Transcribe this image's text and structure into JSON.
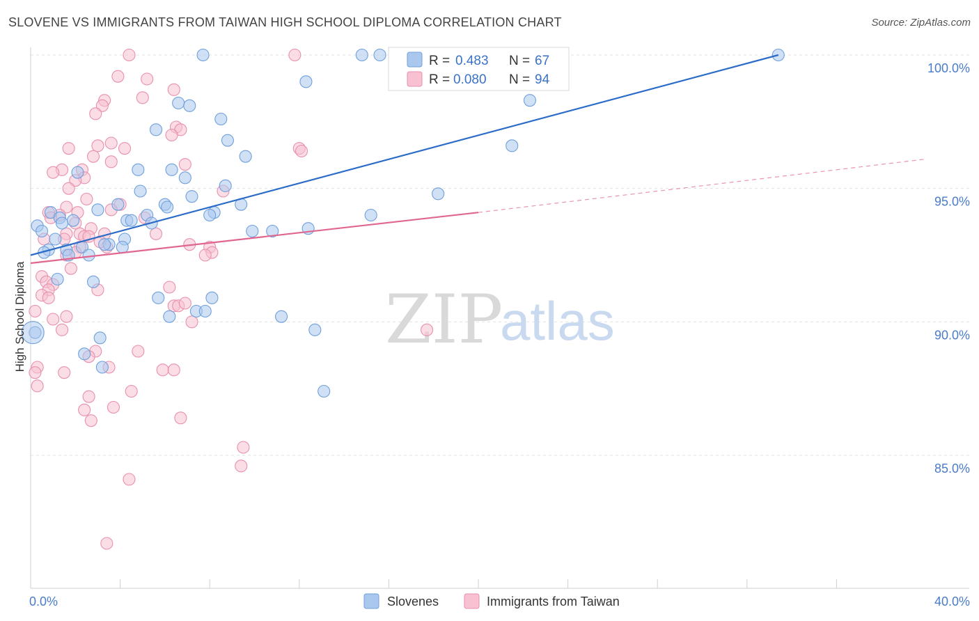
{
  "title": "SLOVENE VS IMMIGRANTS FROM TAIWAN HIGH SCHOOL DIPLOMA CORRELATION CHART",
  "source": "Source: ZipAtlas.com",
  "watermark": {
    "zip": "ZIP",
    "atlas": "atlas"
  },
  "legend_box": {
    "r_label": "R =",
    "n_label": "N =",
    "rows": [
      {
        "series": "Slovenes",
        "r": "0.483",
        "n": "67"
      },
      {
        "series": "Immigrants from Taiwan",
        "r": "0.080",
        "n": "94"
      }
    ]
  },
  "colors": {
    "blue_fill": "#aac8ee",
    "blue_stroke": "#6f9fdc",
    "blue_line": "#2b6cc8",
    "pink_fill": "#f7c1d2",
    "pink_stroke": "#e890ad",
    "pink_line": "#e06690",
    "grid": "#e3e3e3",
    "tick_text": "#4a7cc9"
  },
  "chart_data": {
    "type": "scatter",
    "title": "SLOVENE VS IMMIGRANTS FROM TAIWAN HIGH SCHOOL DIPLOMA CORRELATION CHART",
    "xlabel": "",
    "ylabel": "High School Diploma",
    "xlim": [
      0,
      40
    ],
    "ylim": [
      80.8,
      100.8
    ],
    "x_tick_labels": [
      {
        "v": 0,
        "label": "0.0%"
      },
      {
        "v": 40,
        "label": "40.0%"
      }
    ],
    "y_tick_labels": [
      {
        "v": 100,
        "label": "100.0%"
      },
      {
        "v": 95,
        "label": "95.0%"
      },
      {
        "v": 90,
        "label": "90.0%"
      },
      {
        "v": 85,
        "label": "85.0%"
      }
    ],
    "x_minor_ticks": [
      4,
      8,
      12,
      16,
      20,
      24,
      28,
      32,
      36
    ],
    "series": [
      {
        "name": "Slovenes",
        "color": "blue",
        "trend": {
          "x0": 0,
          "y0": 92.5,
          "x1": 33.4,
          "y1": 100,
          "dashed_to": null
        },
        "points": [
          [
            7.7,
            100
          ],
          [
            14.8,
            100
          ],
          [
            15.6,
            100
          ],
          [
            33.4,
            100
          ],
          [
            12.3,
            99
          ],
          [
            6.6,
            98.2
          ],
          [
            7.1,
            98.1
          ],
          [
            22.3,
            98.3
          ],
          [
            8.5,
            97.6
          ],
          [
            5.6,
            97.2
          ],
          [
            8.8,
            96.8
          ],
          [
            9.6,
            96.2
          ],
          [
            21.5,
            96.6
          ],
          [
            4.8,
            95.7
          ],
          [
            6.3,
            95.7
          ],
          [
            2.1,
            95.6
          ],
          [
            6.9,
            95.4
          ],
          [
            8.7,
            95.1
          ],
          [
            4.9,
            94.9
          ],
          [
            7.2,
            94.7
          ],
          [
            18.2,
            94.8
          ],
          [
            6.0,
            94.4
          ],
          [
            3.9,
            94.4
          ],
          [
            9.4,
            94.4
          ],
          [
            6.1,
            94.3
          ],
          [
            0.9,
            94.1
          ],
          [
            3.0,
            94.2
          ],
          [
            8.2,
            94.1
          ],
          [
            5.2,
            94
          ],
          [
            15.2,
            94
          ],
          [
            8.0,
            94
          ],
          [
            1.3,
            93.9
          ],
          [
            1.9,
            93.8
          ],
          [
            4.3,
            93.8
          ],
          [
            4.5,
            93.8
          ],
          [
            1.4,
            93.7
          ],
          [
            5.4,
            93.7
          ],
          [
            0.3,
            93.6
          ],
          [
            0.5,
            93.4
          ],
          [
            9.9,
            93.4
          ],
          [
            10.8,
            93.4
          ],
          [
            12.4,
            93.5
          ],
          [
            1.1,
            93.1
          ],
          [
            4.2,
            93.1
          ],
          [
            3.5,
            92.9
          ],
          [
            3.3,
            92.9
          ],
          [
            2.3,
            92.8
          ],
          [
            4.1,
            92.8
          ],
          [
            0.8,
            92.7
          ],
          [
            1.6,
            92.7
          ],
          [
            0.6,
            92.6
          ],
          [
            2.6,
            92.5
          ],
          [
            1.7,
            92.5
          ],
          [
            2.8,
            91.5
          ],
          [
            5.7,
            90.9
          ],
          [
            8.1,
            90.9
          ],
          [
            7.4,
            90.4
          ],
          [
            6.2,
            90.2
          ],
          [
            11.2,
            90.2
          ],
          [
            12.7,
            89.7
          ],
          [
            3.1,
            89.4
          ],
          [
            0.2,
            89.6
          ],
          [
            2.4,
            88.8
          ],
          [
            3.2,
            88.3
          ],
          [
            13.1,
            87.4
          ],
          [
            7.8,
            90.4
          ],
          [
            1.2,
            91.6
          ]
        ]
      },
      {
        "name": "Immigrants from Taiwan",
        "color": "pink",
        "trend": {
          "x0": 0,
          "y0": 92.2,
          "x1": 20,
          "y1": 94.1,
          "dashed_to": {
            "x": 40,
            "y": 96.1
          }
        },
        "points": [
          [
            4.4,
            100
          ],
          [
            11.8,
            100
          ],
          [
            3.9,
            99.2
          ],
          [
            5.2,
            99.1
          ],
          [
            6.4,
            98.7
          ],
          [
            3.3,
            98.3
          ],
          [
            3.2,
            98.1
          ],
          [
            5.0,
            98.4
          ],
          [
            2.9,
            97.8
          ],
          [
            6.5,
            97.3
          ],
          [
            6.7,
            97.2
          ],
          [
            6.3,
            97
          ],
          [
            3.0,
            96.6
          ],
          [
            3.6,
            96.7
          ],
          [
            1.7,
            96.5
          ],
          [
            4.2,
            96.5
          ],
          [
            12.0,
            96.5
          ],
          [
            12.1,
            96.4
          ],
          [
            2.8,
            96.2
          ],
          [
            3.6,
            96
          ],
          [
            6.9,
            95.9
          ],
          [
            1.4,
            95.7
          ],
          [
            1.0,
            95.6
          ],
          [
            2.3,
            95.7
          ],
          [
            2.4,
            95.4
          ],
          [
            2.0,
            95.3
          ],
          [
            1.7,
            95
          ],
          [
            8.6,
            94.9
          ],
          [
            2.5,
            94.6
          ],
          [
            1.6,
            94.3
          ],
          [
            4.0,
            94.4
          ],
          [
            3.6,
            94.2
          ],
          [
            0.8,
            94.1
          ],
          [
            2.1,
            94.1
          ],
          [
            1.3,
            94
          ],
          [
            0.9,
            93.9
          ],
          [
            5.1,
            93.9
          ],
          [
            2.0,
            93.7
          ],
          [
            2.7,
            93.5
          ],
          [
            1.6,
            93.3
          ],
          [
            2.2,
            93.3
          ],
          [
            5.6,
            93.3
          ],
          [
            0.6,
            93.1
          ],
          [
            1.5,
            93.1
          ],
          [
            2.4,
            93.2
          ],
          [
            2.6,
            93.2
          ],
          [
            3.3,
            93.3
          ],
          [
            2.2,
            92.8
          ],
          [
            3.4,
            92.8
          ],
          [
            8.0,
            92.8
          ],
          [
            8.1,
            92.6
          ],
          [
            1.6,
            92.5
          ],
          [
            2.0,
            92.6
          ],
          [
            7.8,
            92.5
          ],
          [
            1.8,
            92
          ],
          [
            0.5,
            91.7
          ],
          [
            0.7,
            91.5
          ],
          [
            1.0,
            91.4
          ],
          [
            0.8,
            91.2
          ],
          [
            3.0,
            91.2
          ],
          [
            6.2,
            91.3
          ],
          [
            0.5,
            91
          ],
          [
            0.8,
            90.9
          ],
          [
            6.4,
            90.6
          ],
          [
            6.6,
            90.6
          ],
          [
            6.9,
            90.7
          ],
          [
            0.2,
            90.4
          ],
          [
            1.6,
            90.2
          ],
          [
            1.0,
            90.1
          ],
          [
            7.2,
            90
          ],
          [
            1.4,
            89.7
          ],
          [
            17.7,
            89.7
          ],
          [
            4.8,
            88.9
          ],
          [
            2.9,
            88.9
          ],
          [
            2.6,
            88.7
          ],
          [
            3.5,
            88.3
          ],
          [
            0.3,
            88.3
          ],
          [
            0.2,
            88.1
          ],
          [
            1.5,
            88.1
          ],
          [
            5.9,
            88.2
          ],
          [
            6.4,
            88.2
          ],
          [
            0.3,
            87.6
          ],
          [
            4.5,
            87.4
          ],
          [
            2.6,
            87.2
          ],
          [
            3.7,
            86.8
          ],
          [
            2.4,
            86.7
          ],
          [
            6.7,
            86.4
          ],
          [
            2.7,
            86.3
          ],
          [
            9.5,
            85.3
          ],
          [
            9.4,
            84.6
          ],
          [
            4.4,
            84.1
          ],
          [
            3.4,
            81.7
          ],
          [
            3.1,
            93.0
          ],
          [
            7.1,
            92.9
          ]
        ]
      }
    ]
  },
  "bottom_legend": [
    {
      "label": "Slovenes",
      "color": "blue"
    },
    {
      "label": "Immigrants from Taiwan",
      "color": "pink"
    }
  ]
}
